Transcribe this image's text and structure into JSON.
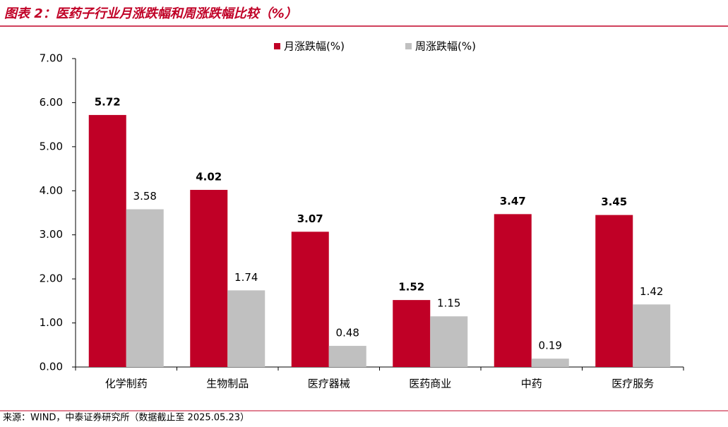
{
  "chart_data": {
    "type": "bar",
    "title": "图表 2：医药子行业月涨跌幅和周涨跌幅比较（%）",
    "source": "来源：WIND，中泰证券研究所（数据截止至 2025.05.23）",
    "categories": [
      "化学制药",
      "生物制品",
      "医疗器械",
      "医药商业",
      "中药",
      "医疗服务"
    ],
    "series": [
      {
        "name": "月涨跌幅(%)",
        "color": "#c00026",
        "values": [
          5.72,
          4.02,
          3.07,
          1.52,
          3.47,
          3.45
        ]
      },
      {
        "name": "周涨跌幅(%)",
        "color": "#c0c0c0",
        "values": [
          3.58,
          1.74,
          0.48,
          1.15,
          0.19,
          1.42
        ]
      }
    ],
    "ylim": [
      0,
      7
    ],
    "yticks": [
      {
        "value": 0,
        "label": "0.00"
      },
      {
        "value": 1,
        "label": "1.00"
      },
      {
        "value": 2,
        "label": "2.00"
      },
      {
        "value": 3,
        "label": "3.00"
      },
      {
        "value": 4,
        "label": "4.00"
      },
      {
        "value": 5,
        "label": "5.00"
      },
      {
        "value": 6,
        "label": "6.00"
      },
      {
        "value": 7,
        "label": "7.00"
      }
    ],
    "grid": false,
    "legend": "top"
  }
}
